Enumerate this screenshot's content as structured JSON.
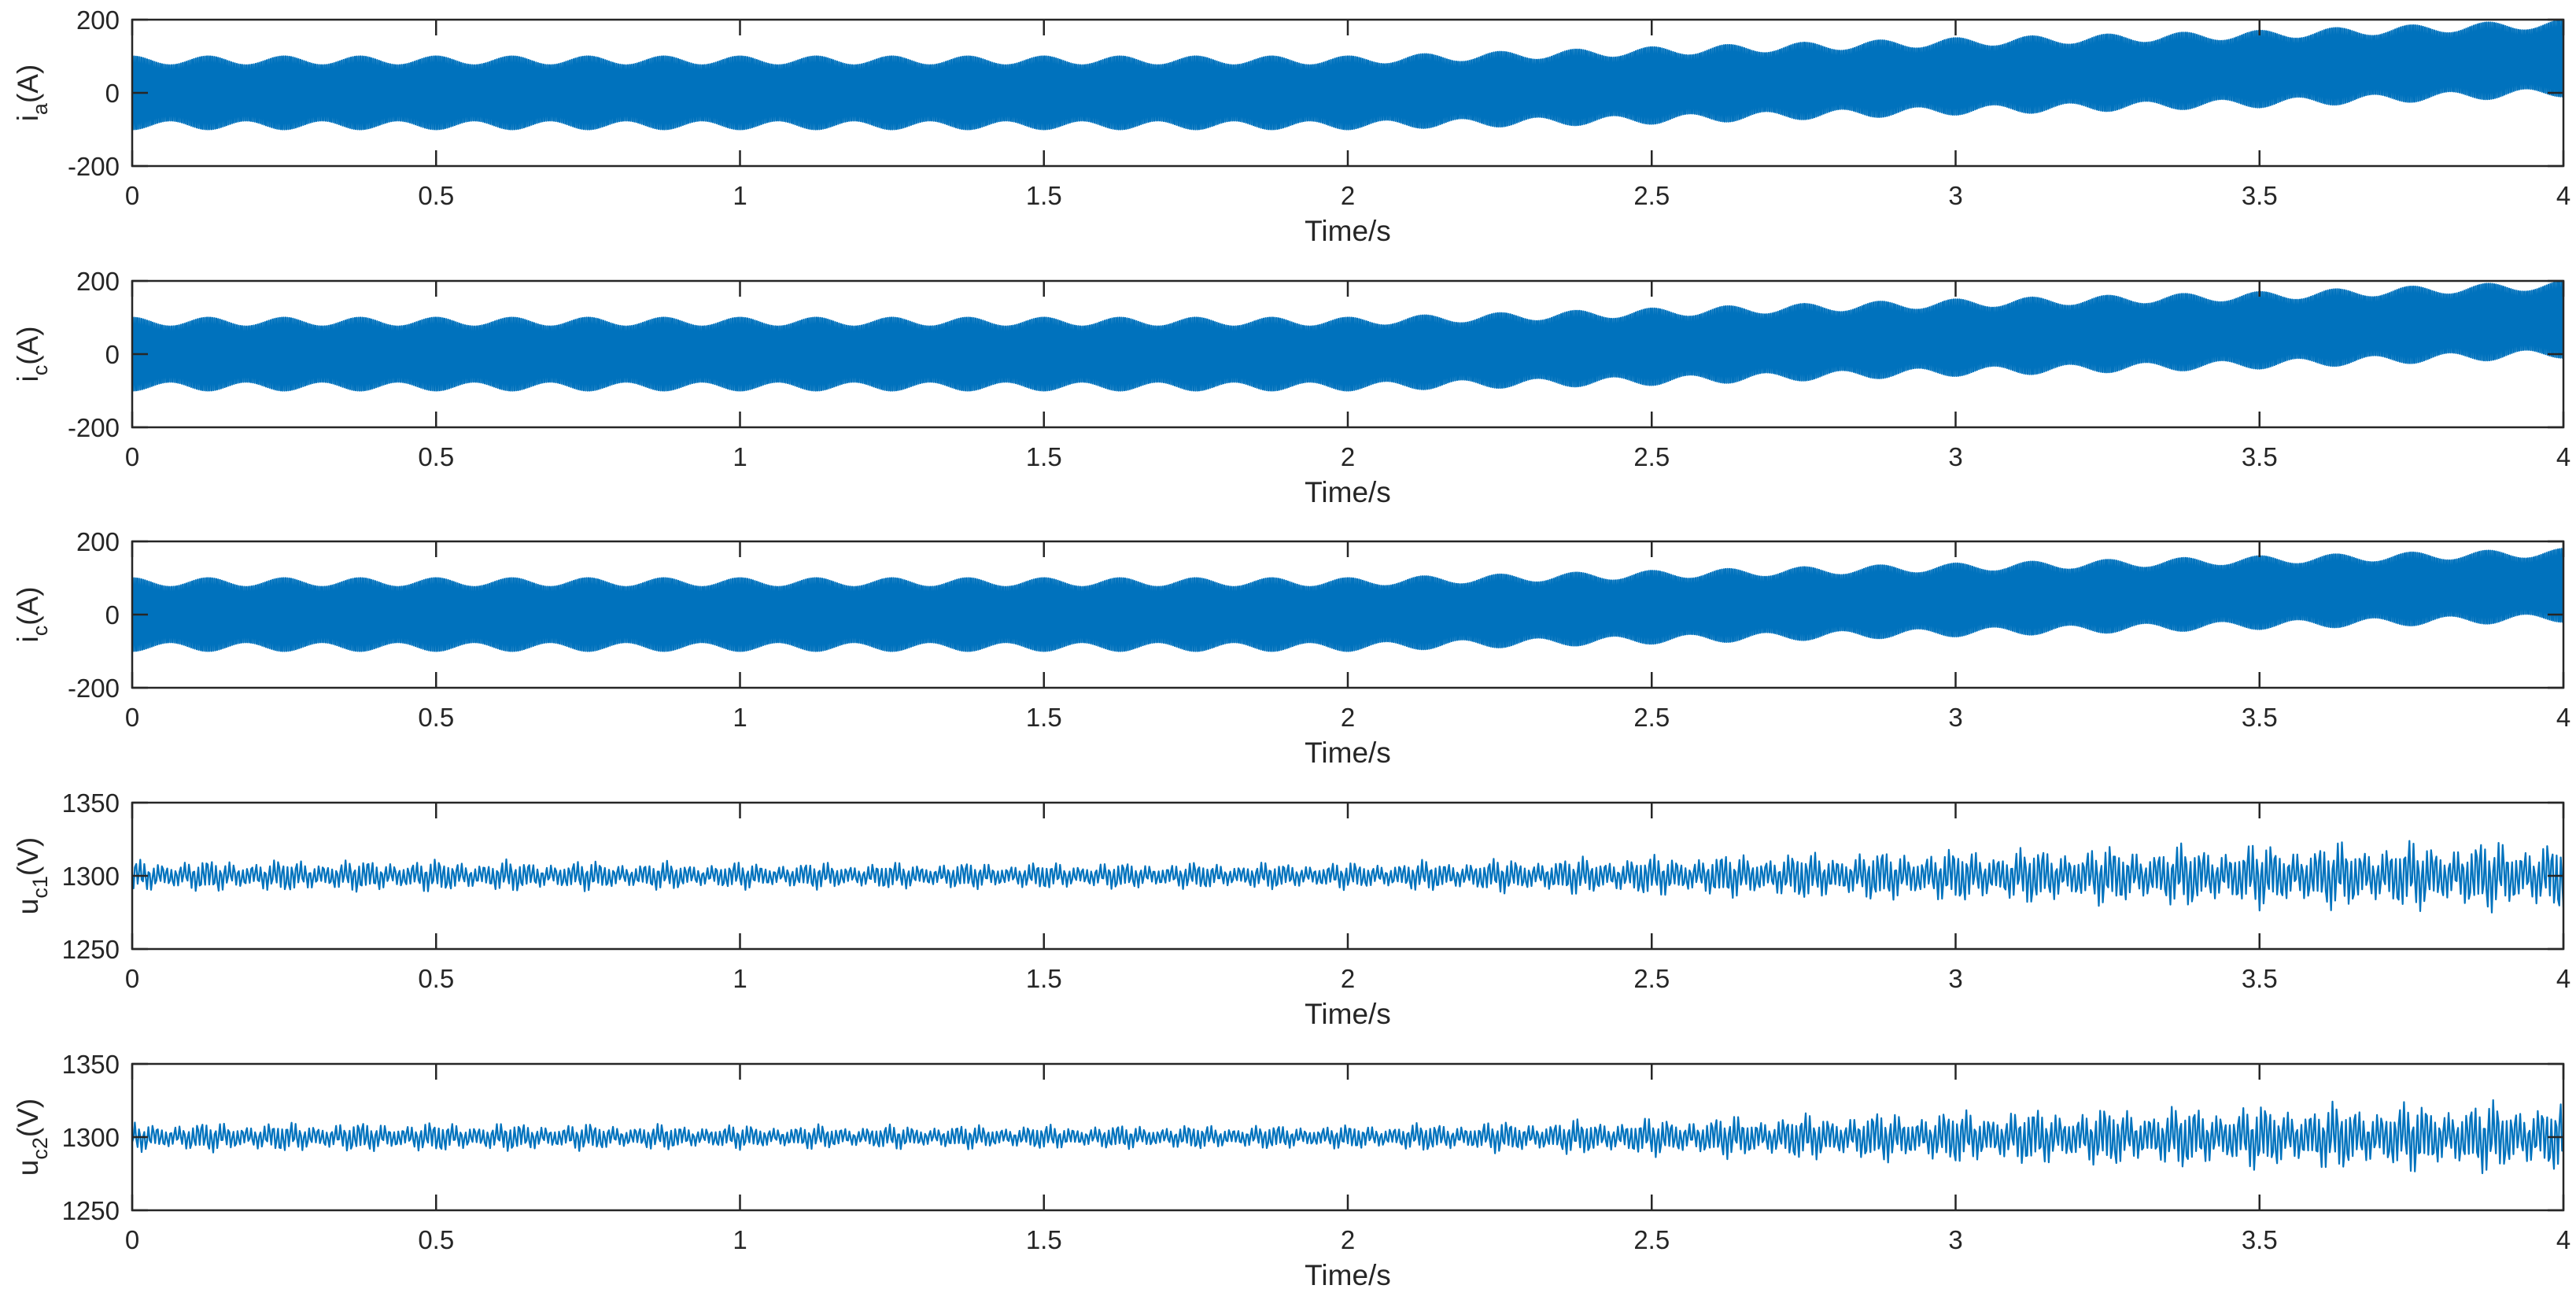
{
  "chart_data": [
    {
      "type": "line",
      "ylabel": "i_a(A)",
      "ylabel_main": "i",
      "ylabel_sub": "a",
      "ylabel_unit": "(A)",
      "xlabel": "Time/s",
      "xlim": [
        0,
        4
      ],
      "ylim": [
        -200,
        200
      ],
      "xticks": [
        "0",
        "0.5",
        "1",
        "1.5",
        "2",
        "2.5",
        "3",
        "3.5",
        "4"
      ],
      "yticks": [
        "-200",
        "0",
        "200"
      ],
      "series": [
        {
          "color": "#0072BD",
          "envelope": {
            "x": [
              0,
              0.5,
              1,
              1.5,
              2,
              2.5,
              3,
              3.5,
              4
            ],
            "center": [
              0,
              0,
              0,
              0,
              0,
              20,
              45,
              65,
              95
            ],
            "amplitude": [
              100,
              100,
              100,
              100,
              100,
              105,
              105,
              105,
              105
            ]
          }
        }
      ]
    },
    {
      "type": "line",
      "ylabel": "i_c(A)",
      "ylabel_main": "i",
      "ylabel_sub": "c",
      "ylabel_unit": "(A)",
      "xlabel": "Time/s",
      "xlim": [
        0,
        4
      ],
      "ylim": [
        -200,
        200
      ],
      "xticks": [
        "0",
        "0.5",
        "1",
        "1.5",
        "2",
        "2.5",
        "3",
        "3.5",
        "4"
      ],
      "yticks": [
        "-200",
        "0",
        "200"
      ],
      "series": [
        {
          "color": "#0072BD",
          "envelope": {
            "x": [
              0,
              0.5,
              1,
              1.5,
              2,
              2.5,
              3,
              3.5,
              4
            ],
            "center": [
              0,
              0,
              0,
              0,
              0,
              20,
              45,
              65,
              95
            ],
            "amplitude": [
              100,
              100,
              100,
              100,
              100,
              105,
              105,
              105,
              105
            ]
          }
        }
      ]
    },
    {
      "type": "line",
      "ylabel": "i_c(A)",
      "ylabel_main": "i",
      "ylabel_sub": "c",
      "ylabel_unit": "(A)",
      "xlabel": "Time/s",
      "xlim": [
        0,
        4
      ],
      "ylim": [
        -200,
        200
      ],
      "xticks": [
        "0",
        "0.5",
        "1",
        "1.5",
        "2",
        "2.5",
        "3",
        "3.5",
        "4"
      ],
      "yticks": [
        "-200",
        "0",
        "200"
      ],
      "series": [
        {
          "color": "#0072BD",
          "envelope": {
            "x": [
              0,
              0.5,
              1,
              1.5,
              2,
              2.5,
              3,
              3.5,
              4
            ],
            "center": [
              0,
              0,
              0,
              0,
              0,
              20,
              40,
              60,
              80
            ],
            "amplitude": [
              100,
              100,
              100,
              100,
              100,
              100,
              100,
              100,
              100
            ]
          }
        }
      ]
    },
    {
      "type": "line",
      "ylabel": "u_c1(V)",
      "ylabel_main": "u",
      "ylabel_sub": "c1",
      "ylabel_unit": "(V)",
      "xlabel": "Time/s",
      "xlim": [
        0,
        4
      ],
      "ylim": [
        1250,
        1350
      ],
      "xticks": [
        "0",
        "0.5",
        "1",
        "1.5",
        "2",
        "2.5",
        "3",
        "3.5",
        "4"
      ],
      "yticks": [
        "1250",
        "1300",
        "1350"
      ],
      "series": [
        {
          "color": "#0072BD",
          "envelope": {
            "x": [
              0,
              0.5,
              1,
              1.5,
              2,
              2.5,
              3,
              3.5,
              4
            ],
            "center": [
              1300,
              1300,
              1300,
              1300,
              1300,
              1300,
              1300,
              1300,
              1300
            ],
            "amplitude": [
              12,
              12,
              10,
              10,
              10,
              15,
              20,
              24,
              27
            ]
          }
        }
      ]
    },
    {
      "type": "line",
      "ylabel": "u_c2(V)",
      "ylabel_main": "u",
      "ylabel_sub": "c2",
      "ylabel_unit": "(V)",
      "xlabel": "Time/s",
      "xlim": [
        0,
        4
      ],
      "ylim": [
        1250,
        1350
      ],
      "xticks": [
        "0",
        "0.5",
        "1",
        "1.5",
        "2",
        "2.5",
        "3",
        "3.5",
        "4"
      ],
      "yticks": [
        "1250",
        "1300",
        "1350"
      ],
      "series": [
        {
          "color": "#0072BD",
          "envelope": {
            "x": [
              0,
              0.5,
              1,
              1.5,
              2,
              2.5,
              3,
              3.5,
              4
            ],
            "center": [
              1300,
              1300,
              1300,
              1300,
              1300,
              1300,
              1300,
              1300,
              1300
            ],
            "amplitude": [
              11,
              11,
              9,
              9,
              9,
              14,
              20,
              24,
              27
            ]
          }
        }
      ]
    }
  ]
}
